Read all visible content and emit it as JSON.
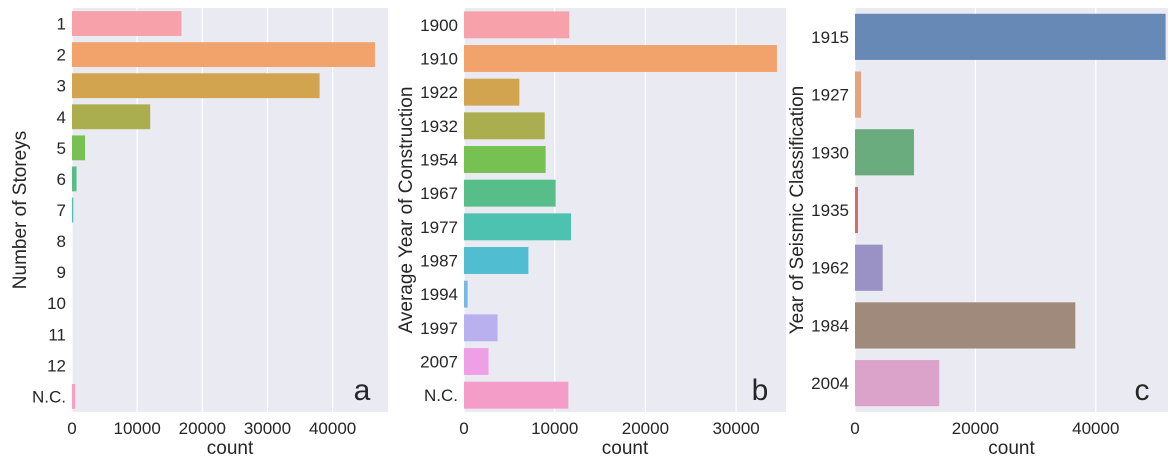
{
  "chart_data": [
    {
      "type": "bar",
      "orientation": "horizontal",
      "panel_letter": "a",
      "ylabel": "Number of Storeys",
      "xlabel": "count",
      "xlim": [
        0,
        48500
      ],
      "xticks": [
        0,
        10000,
        20000,
        30000,
        40000
      ],
      "grid": true,
      "categories": [
        "1",
        "2",
        "3",
        "4",
        "5",
        "6",
        "7",
        "8",
        "9",
        "10",
        "11",
        "12",
        "N.C."
      ],
      "values": [
        16800,
        46500,
        38000,
        12000,
        2000,
        700,
        200,
        0,
        0,
        0,
        0,
        0,
        500
      ],
      "colors": [
        "#f7a1aa",
        "#f2a36b",
        "#d3a450",
        "#aaae4f",
        "#77c152",
        "#58be89",
        "#4ec2b0",
        "#50bdd0",
        "#77b8e7",
        "#b8b0ef",
        "#e6a2ef",
        "#f59fcf",
        "#f6a0c4"
      ]
    },
    {
      "type": "bar",
      "orientation": "horizontal",
      "panel_letter": "b",
      "ylabel": "Average Year of Construction",
      "xlabel": "count",
      "xlim": [
        0,
        35500
      ],
      "xticks": [
        0,
        10000,
        20000,
        30000
      ],
      "grid": true,
      "categories": [
        "1900",
        "1910",
        "1922",
        "1932",
        "1954",
        "1967",
        "1977",
        "1987",
        "1994",
        "1997",
        "2007",
        "N.C."
      ],
      "values": [
        11600,
        34500,
        6100,
        8900,
        9000,
        10100,
        11800,
        7100,
        400,
        3700,
        2700,
        11500
      ],
      "colors": [
        "#f7a1aa",
        "#f2a36b",
        "#d3a450",
        "#aaae4f",
        "#77c152",
        "#58be89",
        "#4ec2b0",
        "#50bdd0",
        "#77b8e7",
        "#b8b0ef",
        "#ef9fe6",
        "#f39dc8"
      ]
    },
    {
      "type": "bar",
      "orientation": "horizontal",
      "panel_letter": "c",
      "ylabel": "Year of Seismic Classification",
      "xlabel": "count",
      "xlim": [
        0,
        52000
      ],
      "xticks": [
        0,
        20000,
        40000
      ],
      "grid": true,
      "categories": [
        "1915",
        "1927",
        "1930",
        "1935",
        "1962",
        "1984",
        "2004"
      ],
      "values": [
        51600,
        1000,
        9800,
        500,
        4600,
        36600,
        14000
      ],
      "colors": [
        "#6689b5",
        "#e3a37d",
        "#6bac7e",
        "#d26c6c",
        "#9a91c5",
        "#a08a7b",
        "#dca3ca"
      ]
    }
  ]
}
